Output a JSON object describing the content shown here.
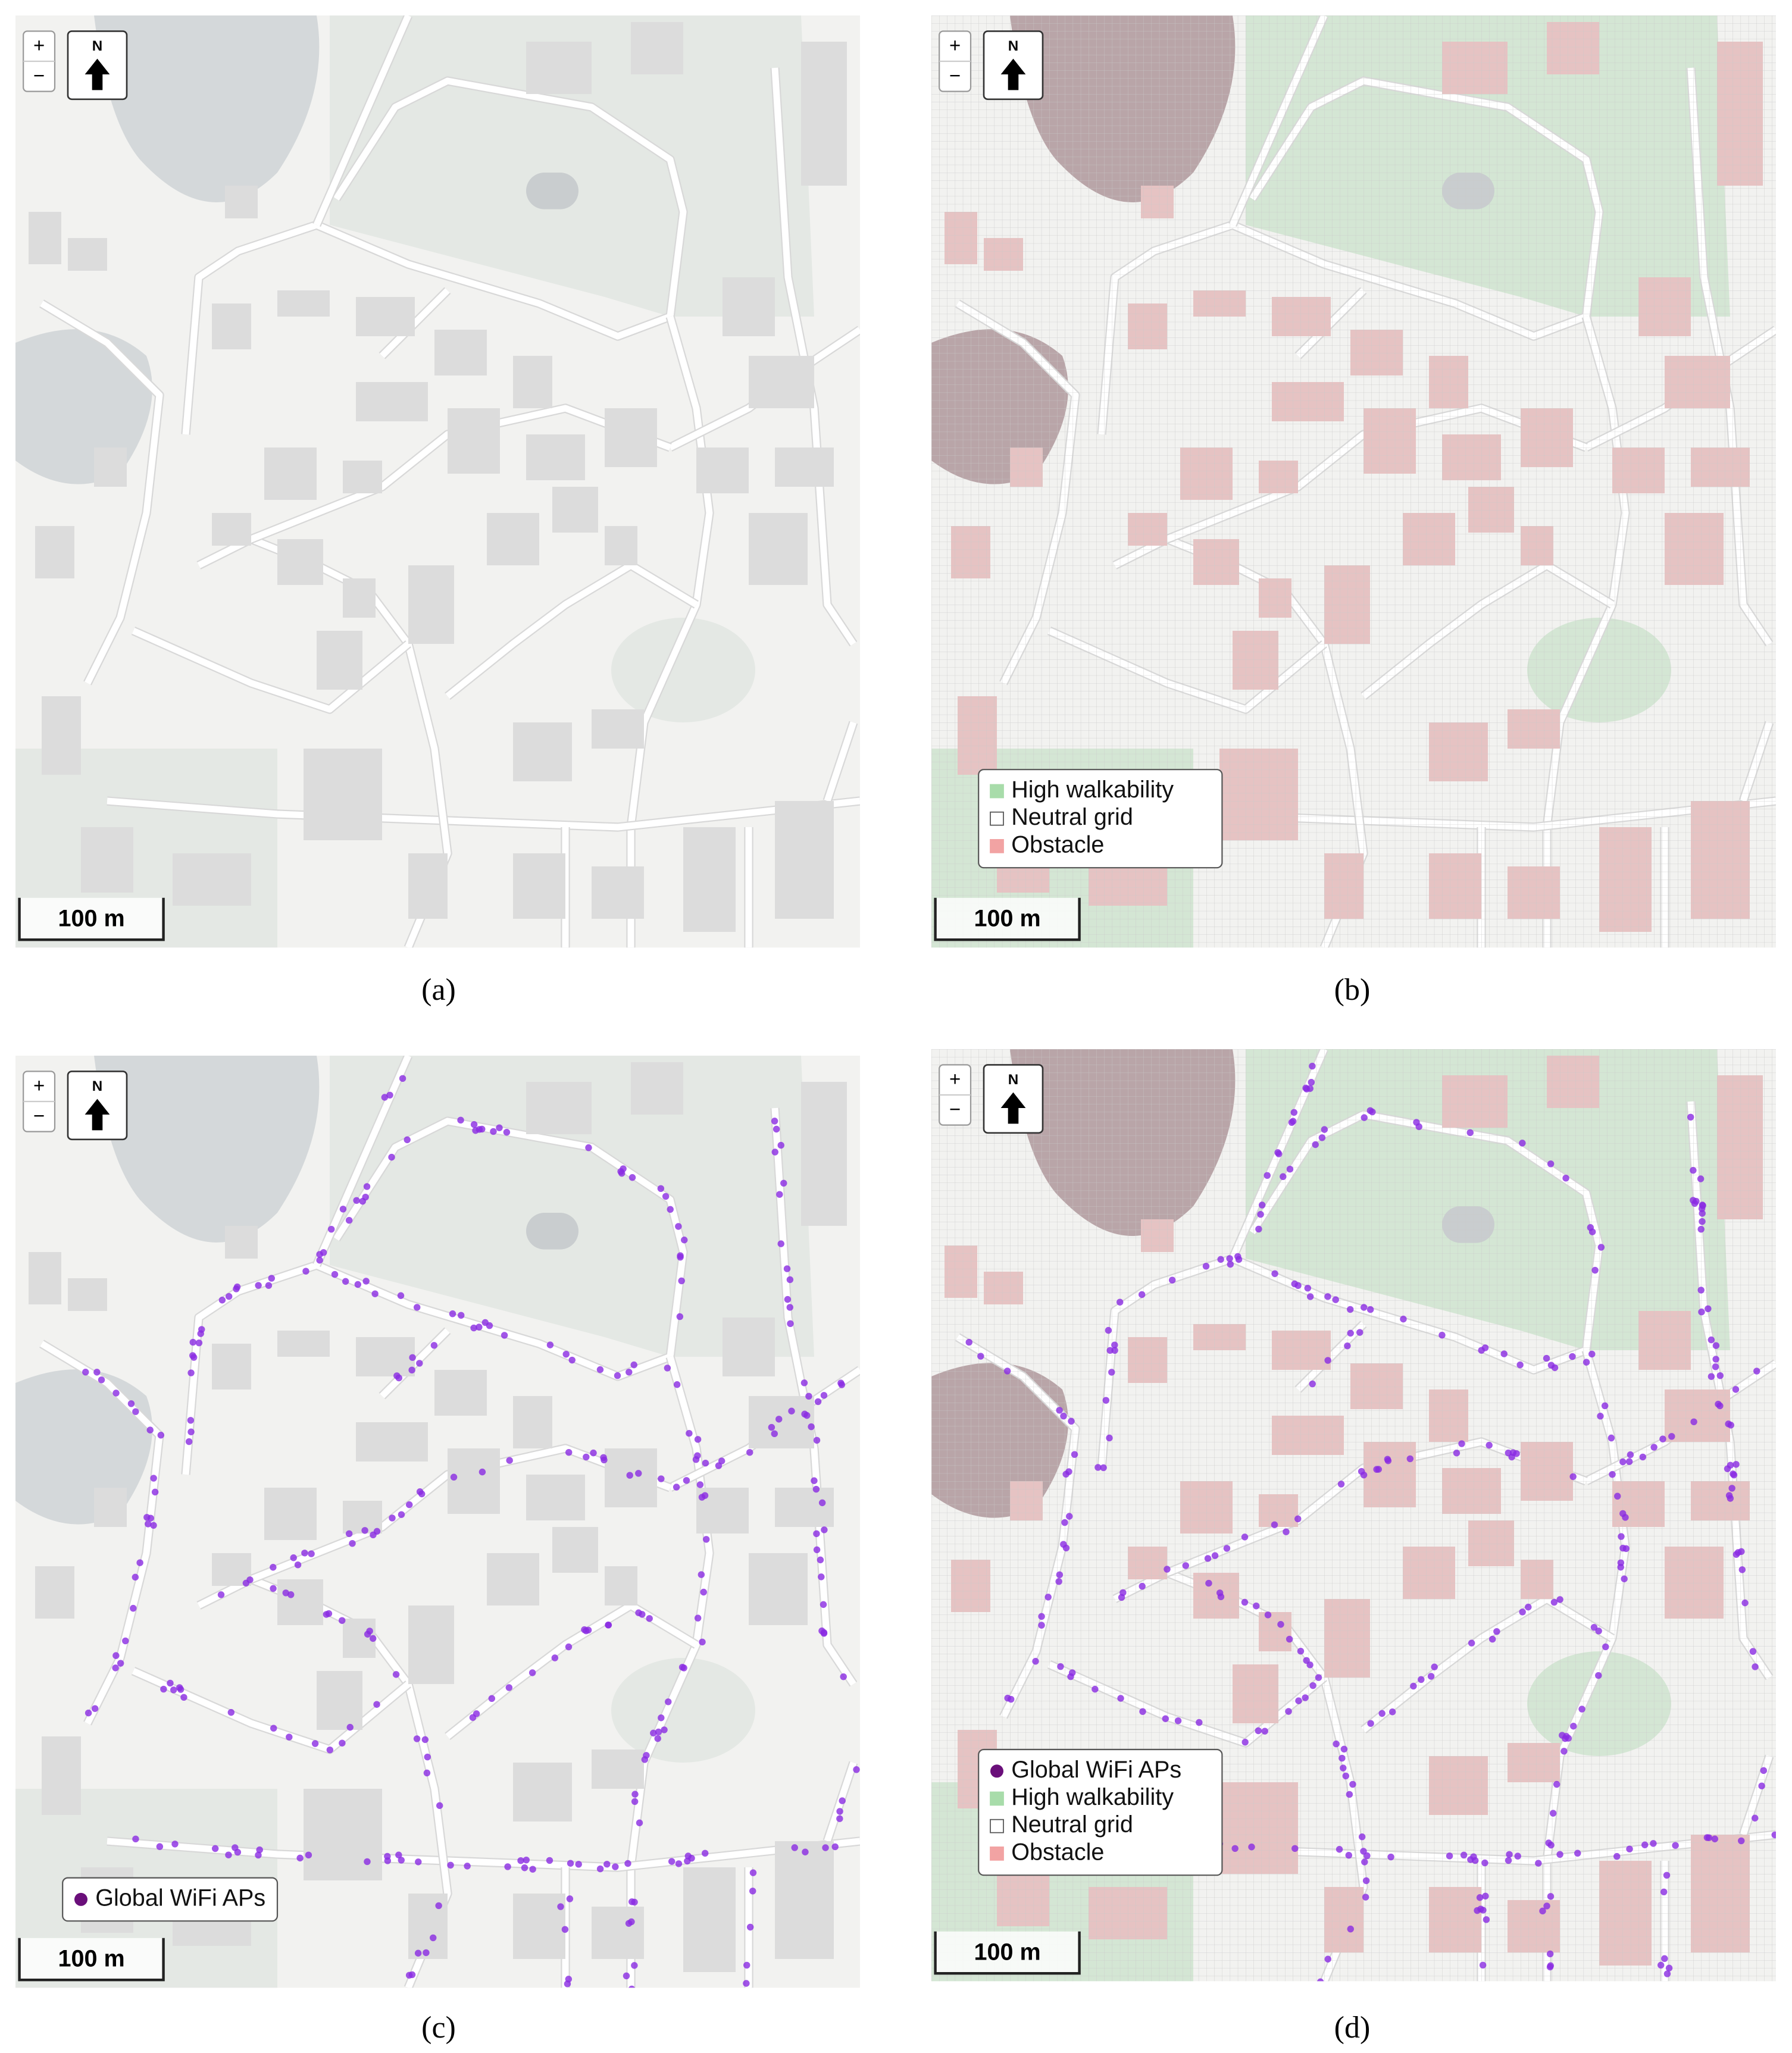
{
  "panels": [
    {
      "caption": "(a)",
      "zoom_in": "+",
      "zoom_out": "−",
      "north": "N",
      "scale": "100 m",
      "grid": false,
      "wifi": false,
      "legend": []
    },
    {
      "caption": "(b)",
      "zoom_in": "+",
      "zoom_out": "−",
      "north": "N",
      "scale": "100 m",
      "grid": true,
      "wifi": false,
      "legend": [
        {
          "label": "High walkability",
          "color": "#a8dcaa",
          "marker": "square"
        },
        {
          "label": "Neutral grid",
          "color": "#ffffff",
          "marker": "square"
        },
        {
          "label": "Obstacle",
          "color": "#f2a3a3",
          "marker": "square"
        }
      ]
    },
    {
      "caption": "(c)",
      "zoom_in": "+",
      "zoom_out": "−",
      "north": "N",
      "scale": "100 m",
      "grid": false,
      "wifi": true,
      "legend": [
        {
          "label": "Global WiFi APs",
          "color": "#6a0f7a",
          "marker": "circle"
        }
      ]
    },
    {
      "caption": "(d)",
      "zoom_in": "+",
      "zoom_out": "−",
      "north": "N",
      "scale": "100 m",
      "grid": true,
      "wifi": true,
      "legend": [
        {
          "label": "Global WiFi APs",
          "color": "#6a0f7a",
          "marker": "circle"
        },
        {
          "label": "High walkability",
          "color": "#a8dcaa",
          "marker": "square"
        },
        {
          "label": "Neutral grid",
          "color": "#ffffff",
          "marker": "square"
        },
        {
          "label": "Obstacle",
          "color": "#f2a3a3",
          "marker": "square"
        }
      ]
    }
  ]
}
